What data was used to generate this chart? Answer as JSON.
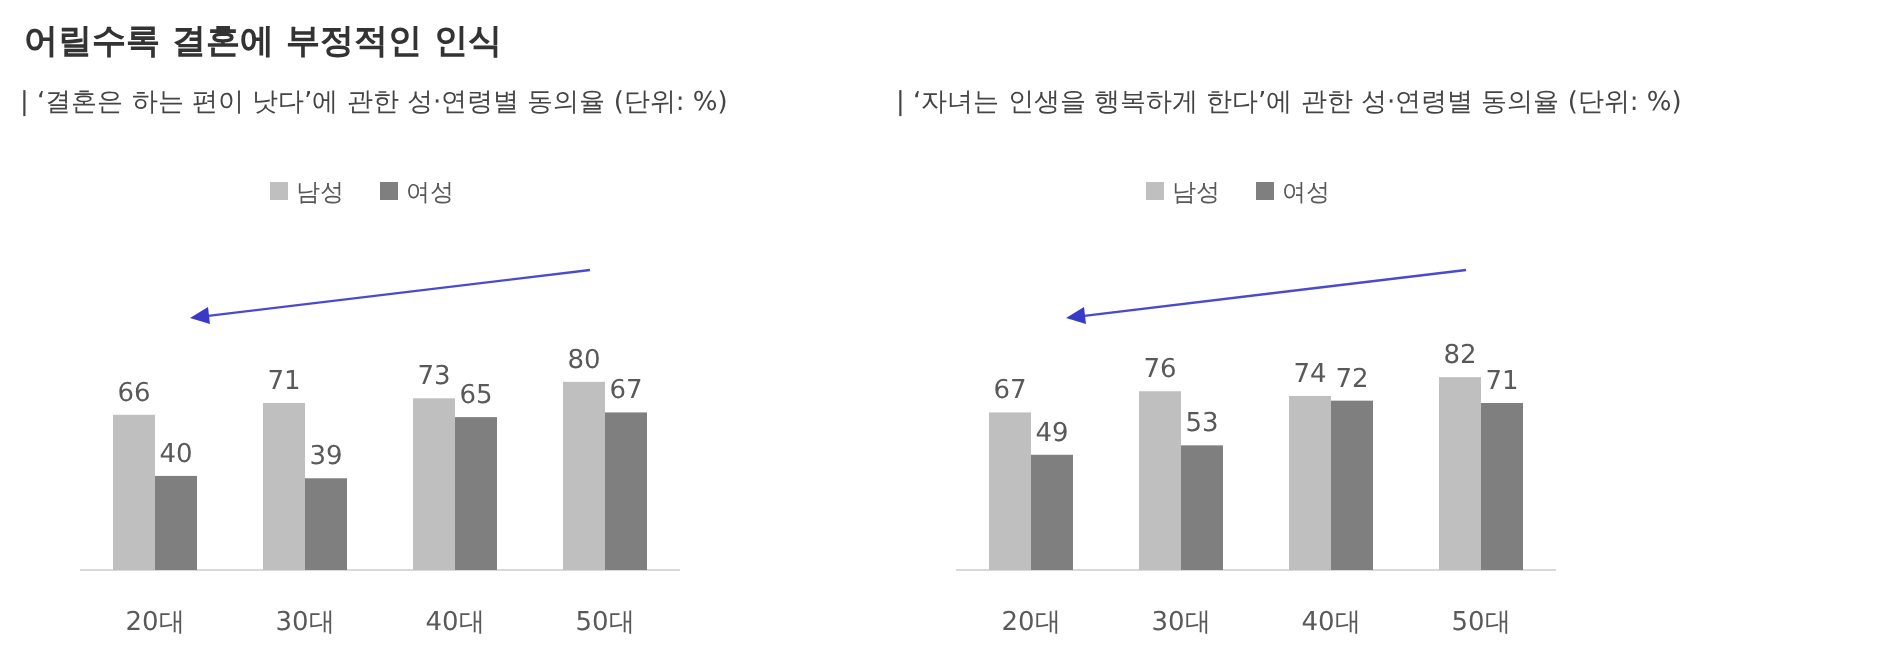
{
  "chart_data": [
    {
      "type": "bar",
      "title": "어릴수록 결혼에 부정적인 인식",
      "subtitle": "| ‘결혼은 하는 편이 낫다’에 관한 성·연령별 동의율 (단위: %)",
      "categories": [
        "20대",
        "30대",
        "40대",
        "50대"
      ],
      "series": [
        {
          "name": "남성",
          "color": "#bfbfbf",
          "values": [
            66,
            71,
            73,
            80
          ]
        },
        {
          "name": "여성",
          "color": "#7f7f7f",
          "values": [
            40,
            39,
            65,
            67
          ]
        }
      ],
      "data_labels": true,
      "legend": "top"
    },
    {
      "type": "bar",
      "subtitle": "| ‘자녀는 인생을 행복하게 한다’에 관한 성·연령별 동의율 (단위: %)",
      "categories": [
        "20대",
        "30대",
        "40대",
        "50대"
      ],
      "series": [
        {
          "name": "남성",
          "color": "#bfbfbf",
          "values": [
            67,
            76,
            74,
            82
          ]
        },
        {
          "name": "여성",
          "color": "#7f7f7f",
          "values": [
            49,
            53,
            72,
            71
          ]
        }
      ],
      "data_labels": true,
      "legend": "top"
    }
  ]
}
